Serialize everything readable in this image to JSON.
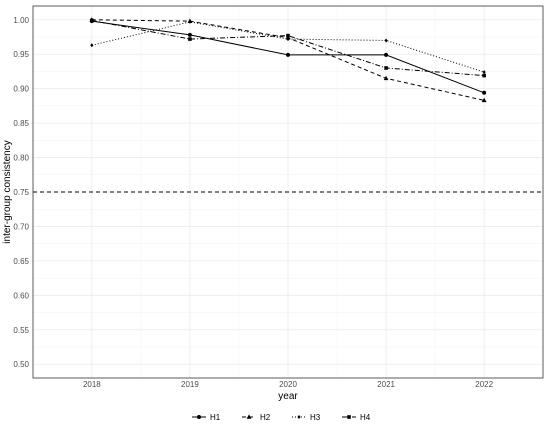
{
  "chart_data": {
    "type": "line",
    "xlabel": "year",
    "ylabel": "inter-group consistency",
    "x": [
      2018,
      2019,
      2020,
      2021,
      2022
    ],
    "xticks": [
      "2018",
      "2019",
      "2020",
      "2021",
      "2022"
    ],
    "ylim": [
      0.48,
      1.02
    ],
    "yticks": [
      "0.50",
      "0.55",
      "0.60",
      "0.65",
      "0.70",
      "0.75",
      "0.80",
      "0.85",
      "0.90",
      "0.95",
      "1.00"
    ],
    "reference_line": {
      "y": 0.75,
      "style": "dashed"
    },
    "grid": true,
    "legend_position": "bottom",
    "series": [
      {
        "name": "H1",
        "values": [
          0.998,
          0.978,
          0.949,
          0.949,
          0.894
        ],
        "linestyle": "solid",
        "marker": "circle"
      },
      {
        "name": "H2",
        "values": [
          1.0,
          0.998,
          0.974,
          0.915,
          0.883
        ],
        "linestyle": "dashed",
        "marker": "triangle"
      },
      {
        "name": "H3",
        "values": [
          0.963,
          0.997,
          0.972,
          0.97,
          0.924
        ],
        "linestyle": "dotted",
        "marker": "diamond"
      },
      {
        "name": "H4",
        "values": [
          0.999,
          0.972,
          0.977,
          0.93,
          0.919
        ],
        "linestyle": "dashdot",
        "marker": "square"
      }
    ],
    "colors": {
      "line": "#000000",
      "grid": "#ebebeb",
      "panel_border": "#333333"
    }
  }
}
